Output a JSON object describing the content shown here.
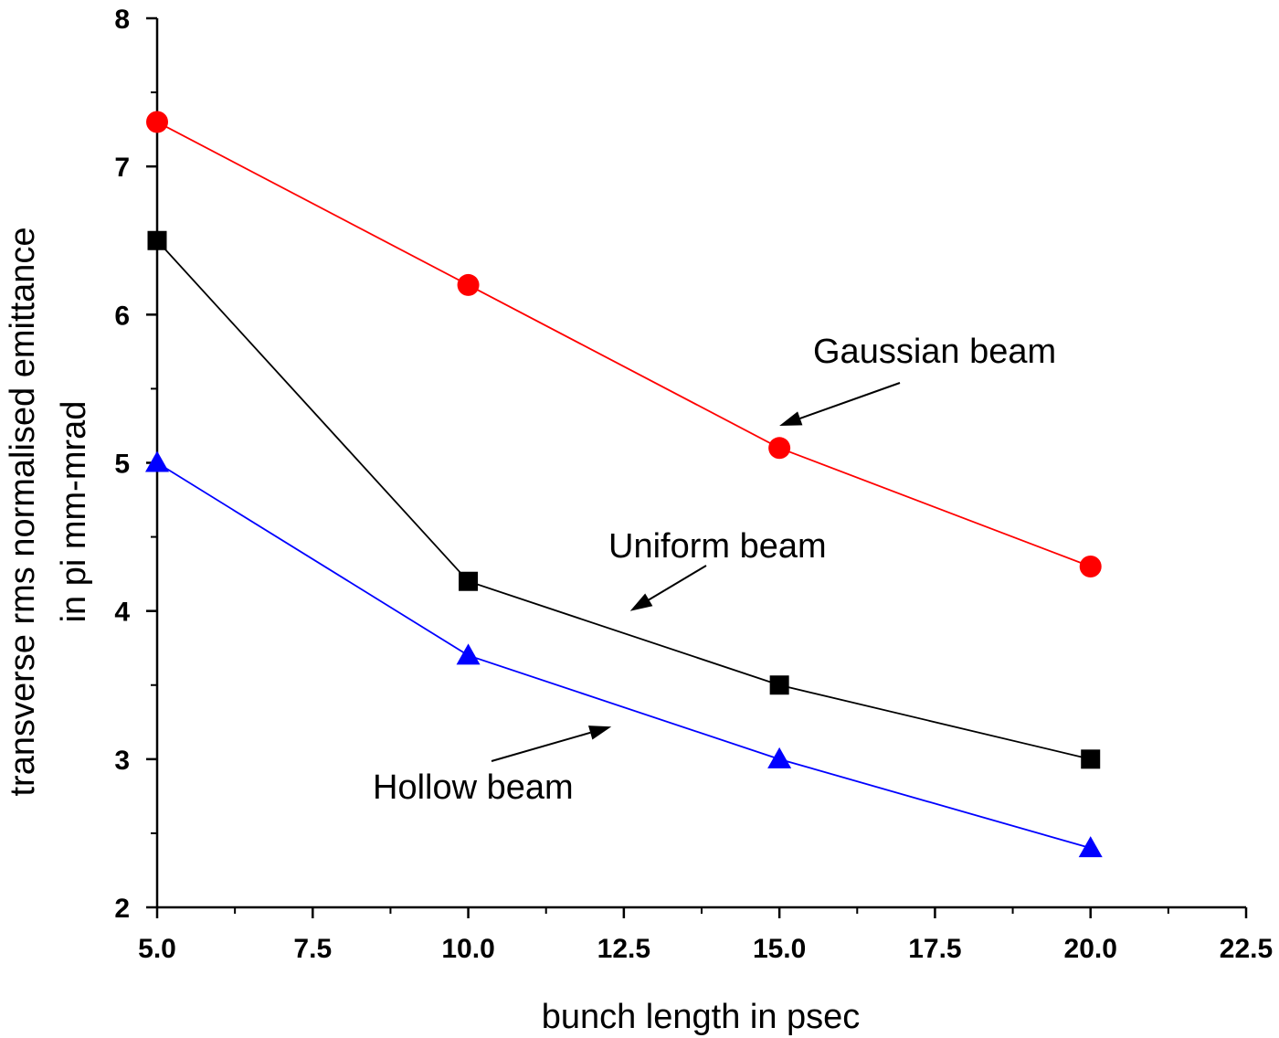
{
  "chart_data": {
    "type": "line",
    "xlabel": "bunch length in psec",
    "ylabel": [
      "transverse rms normalised emittance",
      "in pi mm-mrad"
    ],
    "xlim": [
      5.0,
      22.5
    ],
    "ylim": [
      2,
      8
    ],
    "x_ticks": [
      "5.0",
      "7.5",
      "10.0",
      "12.5",
      "15.0",
      "17.5",
      "20.0",
      "22.5"
    ],
    "y_ticks": [
      "2",
      "3",
      "4",
      "5",
      "6",
      "7",
      "8"
    ],
    "grid": false,
    "x": [
      5,
      10,
      15,
      20
    ],
    "series": [
      {
        "values": [
          7.3,
          6.2,
          5.1,
          4.3
        ],
        "color": "#ff0000",
        "marker": "circle"
      },
      {
        "values": [
          6.5,
          4.2,
          3.5,
          3.0
        ],
        "color": "#000000",
        "marker": "square"
      },
      {
        "values": [
          5.0,
          3.7,
          3.0,
          2.4
        ],
        "color": "#0000ff",
        "marker": "triangle"
      }
    ],
    "annotations": [
      {
        "text": "Gaussian beam",
        "arrow_to": [
          15.0,
          5.25
        ]
      },
      {
        "text": "Uniform beam",
        "arrow_to": [
          12.6,
          4.0
        ]
      },
      {
        "text": "Hollow beam",
        "arrow_to": [
          12.3,
          3.22
        ]
      }
    ]
  }
}
